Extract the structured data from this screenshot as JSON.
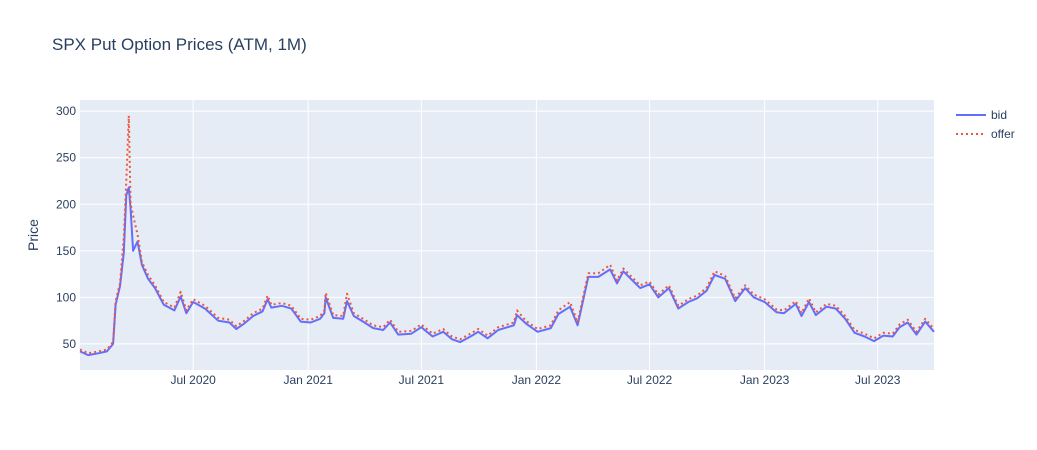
{
  "chart_data": {
    "type": "line",
    "title": "SPX Put Option Prices (ATM, 1M)",
    "xlabel": "",
    "ylabel": "Price",
    "xlim": [
      "2020-01-02",
      "2023-09-29"
    ],
    "ylim": [
      22,
      312
    ],
    "x_ticks": [
      {
        "label": "Jul 2020",
        "date": "2020-07-01"
      },
      {
        "label": "Jan 2021",
        "date": "2021-01-01"
      },
      {
        "label": "Jul 2021",
        "date": "2021-07-01"
      },
      {
        "label": "Jan 2022",
        "date": "2022-01-01"
      },
      {
        "label": "Jul 2022",
        "date": "2022-07-01"
      },
      {
        "label": "Jan 2023",
        "date": "2023-01-01"
      },
      {
        "label": "Jul 2023",
        "date": "2023-07-01"
      }
    ],
    "y_ticks": [
      50,
      100,
      150,
      200,
      250,
      300
    ],
    "grid": true,
    "legend_position": "top-right",
    "colors": {
      "plot_bg": "#e5ecf6",
      "grid": "#ffffff",
      "bid": "#636efa",
      "offer": "#ef553b"
    },
    "series": [
      {
        "name": "bid",
        "line": "solid",
        "x": [
          "2020-01-02",
          "2020-01-15",
          "2020-02-01",
          "2020-02-14",
          "2020-02-24",
          "2020-02-28",
          "2020-03-06",
          "2020-03-12",
          "2020-03-16",
          "2020-03-20",
          "2020-03-23",
          "2020-03-27",
          "2020-04-03",
          "2020-04-10",
          "2020-04-20",
          "2020-05-01",
          "2020-05-15",
          "2020-06-01",
          "2020-06-11",
          "2020-06-20",
          "2020-07-01",
          "2020-07-20",
          "2020-08-10",
          "2020-08-28",
          "2020-09-08",
          "2020-09-21",
          "2020-10-05",
          "2020-10-20",
          "2020-10-28",
          "2020-11-03",
          "2020-11-20",
          "2020-12-05",
          "2020-12-20",
          "2021-01-05",
          "2021-01-20",
          "2021-01-27",
          "2021-01-29",
          "2021-02-10",
          "2021-02-26",
          "2021-03-04",
          "2021-03-15",
          "2021-04-01",
          "2021-04-15",
          "2021-05-01",
          "2021-05-12",
          "2021-05-25",
          "2021-06-15",
          "2021-07-01",
          "2021-07-19",
          "2021-08-05",
          "2021-08-19",
          "2021-09-01",
          "2021-09-20",
          "2021-09-30",
          "2021-10-15",
          "2021-11-01",
          "2021-11-26",
          "2021-12-01",
          "2021-12-15",
          "2022-01-03",
          "2022-01-24",
          "2022-02-05",
          "2022-02-24",
          "2022-03-08",
          "2022-03-25",
          "2022-04-10",
          "2022-04-29",
          "2022-05-10",
          "2022-05-20",
          "2022-06-01",
          "2022-06-16",
          "2022-07-01",
          "2022-07-15",
          "2022-08-01",
          "2022-08-16",
          "2022-09-01",
          "2022-09-15",
          "2022-09-30",
          "2022-10-13",
          "2022-10-30",
          "2022-11-15",
          "2022-12-01",
          "2022-12-15",
          "2023-01-01",
          "2023-01-20",
          "2023-02-01",
          "2023-02-20",
          "2023-03-01",
          "2023-03-13",
          "2023-03-24",
          "2023-04-10",
          "2023-04-25",
          "2023-05-10",
          "2023-05-25",
          "2023-06-10",
          "2023-06-25",
          "2023-07-10",
          "2023-07-25",
          "2023-08-05",
          "2023-08-18",
          "2023-09-01",
          "2023-09-15",
          "2023-09-29"
        ],
        "y": [
          42,
          38,
          40,
          42,
          50,
          92,
          112,
          148,
          210,
          218,
          195,
          150,
          160,
          135,
          120,
          110,
          92,
          86,
          101,
          83,
          95,
          88,
          75,
          73,
          66,
          72,
          80,
          85,
          98,
          89,
          91,
          88,
          74,
          73,
          77,
          83,
          100,
          78,
          77,
          96,
          80,
          73,
          67,
          65,
          73,
          60,
          61,
          68,
          58,
          63,
          55,
          52,
          59,
          63,
          56,
          65,
          70,
          81,
          72,
          63,
          67,
          82,
          90,
          70,
          122,
          122,
          130,
          115,
          128,
          120,
          110,
          114,
          100,
          110,
          88,
          95,
          99,
          107,
          124,
          120,
          96,
          110,
          100,
          95,
          84,
          83,
          93,
          80,
          95,
          81,
          90,
          88,
          77,
          62,
          58,
          53,
          59,
          58,
          68,
          73,
          60,
          74,
          63
        ]
      },
      {
        "name": "offer",
        "line": "dot",
        "x": [
          "2020-01-02",
          "2020-01-15",
          "2020-02-01",
          "2020-02-14",
          "2020-02-24",
          "2020-02-28",
          "2020-03-06",
          "2020-03-12",
          "2020-03-16",
          "2020-03-20",
          "2020-03-23",
          "2020-03-27",
          "2020-04-03",
          "2020-04-10",
          "2020-04-20",
          "2020-05-01",
          "2020-05-15",
          "2020-06-01",
          "2020-06-11",
          "2020-06-20",
          "2020-07-01",
          "2020-07-20",
          "2020-08-10",
          "2020-08-28",
          "2020-09-08",
          "2020-09-21",
          "2020-10-05",
          "2020-10-20",
          "2020-10-28",
          "2020-11-03",
          "2020-11-20",
          "2020-12-05",
          "2020-12-20",
          "2021-01-05",
          "2021-01-20",
          "2021-01-27",
          "2021-01-29",
          "2021-02-10",
          "2021-02-26",
          "2021-03-04",
          "2021-03-15",
          "2021-04-01",
          "2021-04-15",
          "2021-05-01",
          "2021-05-12",
          "2021-05-25",
          "2021-06-15",
          "2021-07-01",
          "2021-07-19",
          "2021-08-05",
          "2021-08-19",
          "2021-09-01",
          "2021-09-20",
          "2021-09-30",
          "2021-10-15",
          "2021-11-01",
          "2021-11-26",
          "2021-12-01",
          "2021-12-15",
          "2022-01-03",
          "2022-01-24",
          "2022-02-05",
          "2022-02-24",
          "2022-03-08",
          "2022-03-25",
          "2022-04-10",
          "2022-04-29",
          "2022-05-10",
          "2022-05-20",
          "2022-06-01",
          "2022-06-16",
          "2022-07-01",
          "2022-07-15",
          "2022-08-01",
          "2022-08-16",
          "2022-09-01",
          "2022-09-15",
          "2022-09-30",
          "2022-10-13",
          "2022-10-30",
          "2022-11-15",
          "2022-12-01",
          "2022-12-15",
          "2023-01-01",
          "2023-01-20",
          "2023-02-01",
          "2023-02-20",
          "2023-03-01",
          "2023-03-13",
          "2023-03-24",
          "2023-04-10",
          "2023-04-25",
          "2023-05-10",
          "2023-05-25",
          "2023-06-10",
          "2023-06-25",
          "2023-07-10",
          "2023-07-25",
          "2023-08-05",
          "2023-08-18",
          "2023-09-01",
          "2023-09-15",
          "2023-09-29"
        ],
        "y": [
          44,
          40,
          42,
          44,
          52,
          96,
          115,
          165,
          225,
          295,
          200,
          188,
          168,
          138,
          124,
          113,
          95,
          89,
          106,
          86,
          98,
          91,
          78,
          76,
          69,
          75,
          83,
          88,
          102,
          92,
          94,
          91,
          77,
          76,
          80,
          86,
          105,
          81,
          80,
          104,
          83,
          76,
          70,
          68,
          76,
          63,
          64,
          71,
          61,
          66,
          58,
          55,
          62,
          66,
          59,
          68,
          73,
          86,
          75,
          66,
          70,
          86,
          95,
          73,
          126,
          126,
          135,
          118,
          131,
          123,
          113,
          117,
          103,
          113,
          91,
          98,
          102,
          110,
          128,
          123,
          99,
          113,
          103,
          98,
          87,
          86,
          96,
          83,
          99,
          84,
          93,
          91,
          80,
          65,
          61,
          56,
          62,
          61,
          71,
          76,
          63,
          77,
          66
        ]
      }
    ]
  }
}
